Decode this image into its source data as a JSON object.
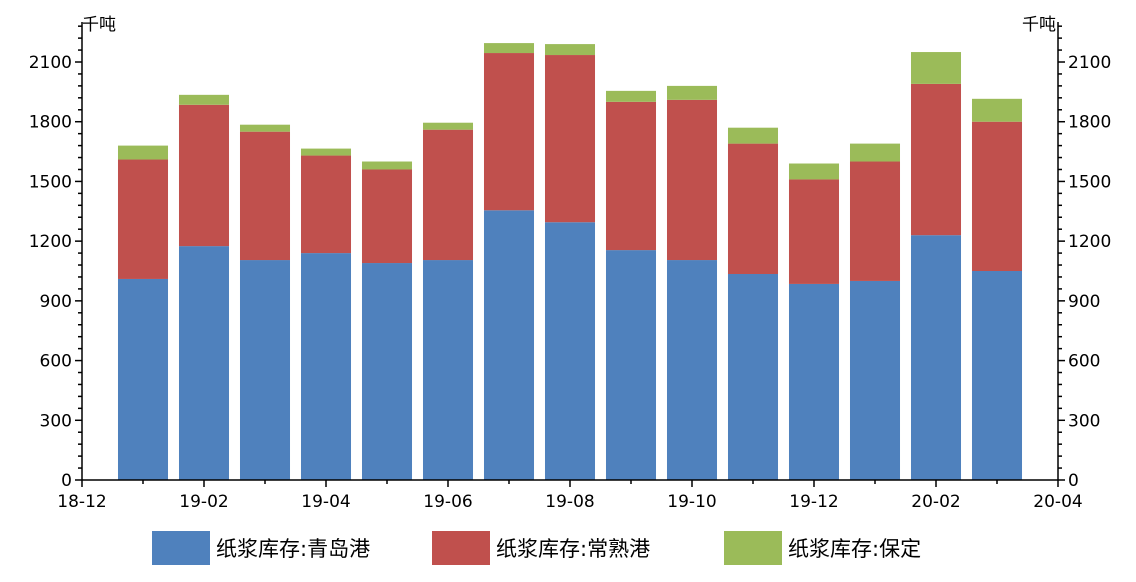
{
  "chart_data": {
    "type": "bar",
    "stacked": true,
    "y_unit_left": "千吨",
    "y_unit_right": "千吨",
    "ylim": [
      0,
      2100
    ],
    "y_ticks": [
      0,
      300,
      600,
      900,
      1200,
      1500,
      1800,
      2100
    ],
    "x_tick_labels": [
      "18-12",
      "19-02",
      "19-04",
      "19-06",
      "19-08",
      "19-10",
      "19-12",
      "20-02",
      "20-04"
    ],
    "categories": [
      "2019-01",
      "2019-02",
      "2019-03",
      "2019-04",
      "2019-05",
      "2019-06",
      "2019-07",
      "2019-08",
      "2019-09",
      "2019-10",
      "2019-11",
      "2019-12",
      "2020-01",
      "2020-02",
      "2020-03"
    ],
    "series": [
      {
        "name": "纸浆库存:青岛港",
        "color": "#4f81bd",
        "values": [
          1010,
          1175,
          1105,
          1140,
          1090,
          1105,
          1355,
          1295,
          1155,
          1105,
          1035,
          985,
          1000,
          1230,
          1050
        ]
      },
      {
        "name": "纸浆库存:常熟港",
        "color": "#c0504d",
        "values": [
          600,
          710,
          645,
          490,
          470,
          655,
          790,
          840,
          745,
          805,
          655,
          525,
          600,
          760,
          750
        ]
      },
      {
        "name": "纸浆库存:保定",
        "color": "#9bbb59",
        "values": [
          70,
          50,
          35,
          35,
          40,
          35,
          50,
          55,
          55,
          70,
          80,
          80,
          90,
          160,
          115
        ]
      }
    ],
    "legend_position": "bottom",
    "grid": false
  }
}
